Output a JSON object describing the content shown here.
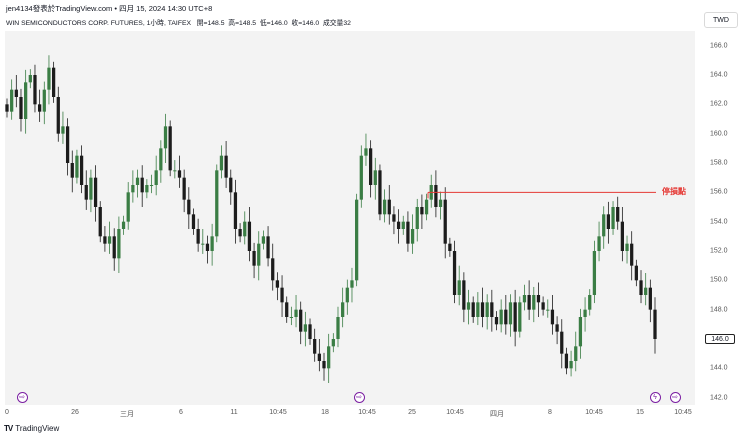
{
  "header": {
    "text": "jen4134發表於TradingView.com • 四月 15, 2024 14:30 UTC+8"
  },
  "symbol": {
    "name": "WIN SEMICONDUCTORS CORP. FUTURES, 1小時, TAIFEX",
    "open_label": "開=148.5",
    "high_label": "高=148.5",
    "low_label": "低=146.0",
    "close_label": "收=146.0",
    "volume_label": "成交量32"
  },
  "currency": "TWD",
  "current_price": "146.0",
  "annotation": {
    "text": "停損點",
    "price": 156.0,
    "color": "#e53935"
  },
  "footer": {
    "logo": "TV",
    "brand": "TradingView"
  },
  "colors": {
    "up": "#3a7d44",
    "down": "#1c1c1c",
    "plot_bg": "#f3f3f3",
    "line": "#e53935",
    "marker": "#7b1fa2"
  },
  "chart_data": {
    "type": "candlestick",
    "ylim": [
      141.5,
      167.0
    ],
    "y_ticks": [
      "166.0",
      "164.0",
      "162.0",
      "160.0",
      "158.0",
      "156.0",
      "154.0",
      "152.0",
      "150.0",
      "148.0",
      "146.0",
      "144.0",
      "142.0"
    ],
    "x_ticks": [
      "0",
      "26",
      "三月",
      "6",
      "11",
      "10:45",
      "18",
      "10:45",
      "25",
      "10:45",
      "四月",
      "8",
      "10:45",
      "15",
      "10:45"
    ],
    "markers": [
      {
        "icon": "forward-arrow-icon",
        "x_label": "0"
      },
      {
        "icon": "forward-arrow-icon",
        "x_label": "10:45"
      },
      {
        "icon": "lightning-icon",
        "x_label": "15"
      },
      {
        "icon": "forward-arrow-icon",
        "x_label": "10:45"
      }
    ],
    "closes": [
      161.5,
      163.0,
      162.5,
      161.0,
      163.5,
      164.0,
      162.0,
      161.5,
      163.0,
      164.5,
      162.5,
      160.0,
      160.5,
      158.0,
      157.0,
      158.5,
      156.5,
      155.5,
      157.0,
      155.0,
      153.0,
      152.5,
      153.0,
      151.5,
      153.5,
      154.0,
      156.0,
      156.5,
      157.0,
      156.0,
      156.5,
      156.5,
      157.5,
      159.0,
      160.5,
      157.5,
      157.5,
      157.0,
      155.5,
      154.5,
      153.5,
      152.5,
      152.5,
      152.0,
      153.0,
      157.5,
      158.5,
      157.0,
      156.0,
      153.5,
      153.0,
      154.0,
      152.0,
      151.0,
      152.5,
      153.0,
      151.5,
      150.0,
      149.5,
      148.5,
      147.5,
      147.5,
      148.0,
      146.5,
      147.0,
      146.0,
      145.0,
      144.5,
      144.0,
      145.5,
      146.0,
      147.5,
      148.5,
      149.5,
      150.0,
      155.5,
      158.5,
      159.0,
      156.5,
      157.5,
      154.5,
      155.5,
      154.5,
      154.0,
      153.5,
      154.0,
      152.5,
      153.5,
      155.0,
      154.5,
      155.5,
      156.5,
      155.0,
      155.5,
      152.5,
      152.0,
      149.0,
      150.0,
      148.0,
      148.5,
      147.5,
      148.5,
      147.5,
      148.5,
      147.5,
      147.0,
      148.0,
      147.0,
      148.5,
      146.5,
      148.5,
      149.0,
      148.0,
      149.0,
      148.5,
      148.0,
      148.0,
      147.0,
      146.5,
      145.0,
      144.0,
      144.5,
      145.5,
      147.5,
      148.0,
      149.0,
      152.0,
      153.0,
      154.5,
      153.5,
      155.0,
      154.0,
      152.0,
      152.5,
      151.0,
      150.0,
      149.0,
      149.5,
      148.0,
      146.0
    ]
  }
}
